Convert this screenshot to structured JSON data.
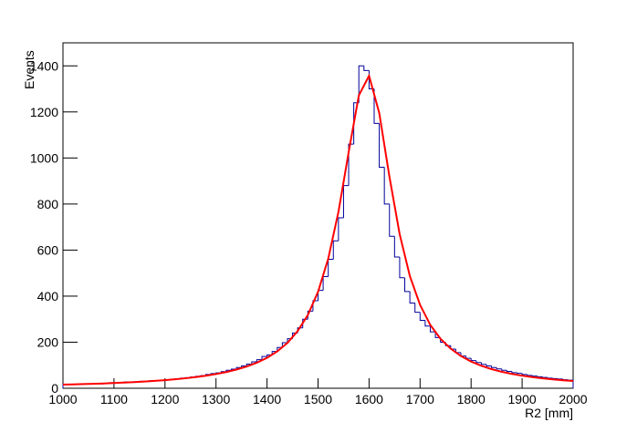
{
  "chart_data": {
    "type": "histogram",
    "xlabel": "R2 [mm]",
    "ylabel": "Events",
    "bins": [
      1000,
      1010,
      1020,
      1030,
      1040,
      1050,
      1060,
      1070,
      1080,
      1090,
      1100,
      1110,
      1120,
      1130,
      1140,
      1150,
      1160,
      1170,
      1180,
      1190,
      1200,
      1210,
      1220,
      1230,
      1240,
      1250,
      1260,
      1270,
      1280,
      1290,
      1300,
      1310,
      1320,
      1330,
      1340,
      1350,
      1360,
      1370,
      1380,
      1390,
      1400,
      1410,
      1420,
      1430,
      1440,
      1450,
      1460,
      1470,
      1480,
      1490,
      1500,
      1510,
      1520,
      1530,
      1540,
      1550,
      1560,
      1570,
      1580,
      1590,
      1600,
      1610,
      1620,
      1630,
      1640,
      1650,
      1660,
      1670,
      1680,
      1690,
      1700,
      1710,
      1720,
      1730,
      1740,
      1750,
      1760,
      1770,
      1780,
      1790,
      1800,
      1810,
      1820,
      1830,
      1840,
      1850,
      1860,
      1870,
      1880,
      1890,
      1900,
      1910,
      1920,
      1930,
      1940,
      1950,
      1960,
      1970,
      1980,
      1990,
      2000
    ],
    "values": [
      16,
      17,
      18,
      17,
      19,
      20,
      21,
      19,
      22,
      24,
      23,
      25,
      27,
      26,
      28,
      30,
      29,
      33,
      32,
      35,
      37,
      39,
      41,
      44,
      46,
      49,
      52,
      55,
      60,
      64,
      67,
      72,
      78,
      83,
      90,
      97,
      105,
      115,
      124,
      138,
      145,
      160,
      177,
      198,
      215,
      240,
      262,
      300,
      335,
      380,
      425,
      485,
      560,
      640,
      740,
      880,
      1060,
      1240,
      1400,
      1380,
      1300,
      1150,
      960,
      800,
      660,
      570,
      480,
      420,
      370,
      330,
      295,
      270,
      245,
      220,
      200,
      185,
      170,
      155,
      140,
      130,
      120,
      112,
      104,
      97,
      90,
      84,
      78,
      73,
      68,
      65,
      60,
      56,
      53,
      50,
      47,
      44,
      42,
      40,
      37,
      35
    ],
    "color": "#000099",
    "fit": {
      "type": "line",
      "color": "#ff0000",
      "x": [
        1000,
        1020,
        1040,
        1060,
        1080,
        1100,
        1120,
        1140,
        1160,
        1180,
        1200,
        1220,
        1240,
        1260,
        1280,
        1300,
        1320,
        1340,
        1360,
        1380,
        1400,
        1420,
        1440,
        1460,
        1480,
        1500,
        1520,
        1540,
        1560,
        1580,
        1600,
        1620,
        1640,
        1660,
        1680,
        1700,
        1720,
        1740,
        1760,
        1780,
        1800,
        1820,
        1840,
        1860,
        1880,
        1900,
        1920,
        1940,
        1960,
        1980,
        2000
      ],
      "values": [
        15.8,
        16.9,
        18.1,
        19.5,
        21.0,
        22.7,
        24.5,
        26.7,
        29.2,
        32.0,
        35.2,
        38.9,
        43.3,
        48.4,
        54.4,
        61.6,
        70.4,
        81.1,
        94.3,
        111,
        132,
        160,
        197,
        248,
        318,
        419,
        563,
        766,
        1025,
        1272,
        1357,
        1195,
        918,
        669,
        487,
        362,
        275,
        215,
        172,
        140,
        116,
        97.6,
        83.1,
        71.6,
        62.3,
        54.7,
        48.3,
        43.0,
        38.5,
        34.7,
        31.5
      ]
    },
    "xlim": [
      1000,
      2000
    ],
    "xticks": [
      1000,
      1100,
      1200,
      1300,
      1400,
      1500,
      1600,
      1700,
      1800,
      1900,
      2000
    ],
    "ylim": [
      0,
      1500
    ],
    "yticks": [
      0,
      200,
      400,
      600,
      800,
      1000,
      1200,
      1400
    ],
    "grid": false
  }
}
